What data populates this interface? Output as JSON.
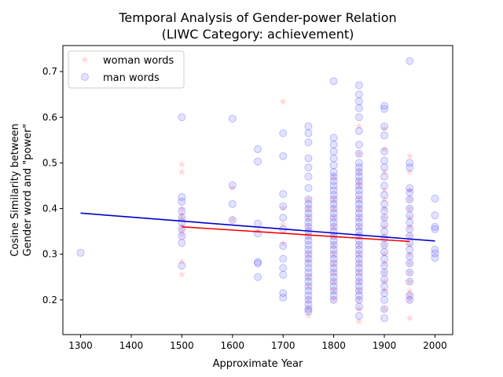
{
  "chart_data": {
    "type": "scatter",
    "title_line1": "Temporal Analysis of Gender-power Relation",
    "title_line2": "(LIWC Category: achievement)",
    "xlabel": "Approximate Year",
    "ylabel_line1": "Cosine Similarity between",
    "ylabel_line2": "Gender word and \"power\"",
    "xlim": [
      1265,
      2035
    ],
    "ylim": [
      0.124,
      0.757
    ],
    "xticks": [
      1300,
      1400,
      1500,
      1600,
      1700,
      1800,
      1900,
      2000
    ],
    "yticks": [
      0.2,
      0.3,
      0.4,
      0.5,
      0.6,
      0.7
    ],
    "legend_position": "top-left",
    "series": [
      {
        "name": "woman words",
        "color": "#ff8080",
        "marker": "star",
        "points": [
          [
            1500,
            0.497
          ],
          [
            1500,
            0.48
          ],
          [
            1500,
            0.399
          ],
          [
            1500,
            0.386
          ],
          [
            1500,
            0.378
          ],
          [
            1500,
            0.362
          ],
          [
            1500,
            0.354
          ],
          [
            1500,
            0.343
          ],
          [
            1500,
            0.284
          ],
          [
            1500,
            0.256
          ],
          [
            1600,
            0.445
          ],
          [
            1600,
            0.376
          ],
          [
            1650,
            0.352
          ],
          [
            1700,
            0.634
          ],
          [
            1700,
            0.401
          ],
          [
            1700,
            0.365
          ],
          [
            1700,
            0.324
          ],
          [
            1750,
            0.42
          ],
          [
            1750,
            0.4
          ],
          [
            1750,
            0.38
          ],
          [
            1750,
            0.36
          ],
          [
            1750,
            0.34
          ],
          [
            1750,
            0.3
          ],
          [
            1750,
            0.285
          ],
          [
            1750,
            0.25
          ],
          [
            1750,
            0.23
          ],
          [
            1750,
            0.2
          ],
          [
            1750,
            0.18
          ],
          [
            1750,
            0.165
          ],
          [
            1800,
            0.47
          ],
          [
            1800,
            0.42
          ],
          [
            1800,
            0.4
          ],
          [
            1800,
            0.38
          ],
          [
            1800,
            0.36
          ],
          [
            1800,
            0.34
          ],
          [
            1800,
            0.32
          ],
          [
            1800,
            0.3
          ],
          [
            1800,
            0.28
          ],
          [
            1800,
            0.26
          ],
          [
            1800,
            0.24
          ],
          [
            1800,
            0.22
          ],
          [
            1800,
            0.2
          ],
          [
            1850,
            0.58
          ],
          [
            1850,
            0.52
          ],
          [
            1850,
            0.48
          ],
          [
            1850,
            0.46
          ],
          [
            1850,
            0.45
          ],
          [
            1850,
            0.42
          ],
          [
            1850,
            0.4
          ],
          [
            1850,
            0.38
          ],
          [
            1850,
            0.36
          ],
          [
            1850,
            0.34
          ],
          [
            1850,
            0.32
          ],
          [
            1850,
            0.3
          ],
          [
            1850,
            0.28
          ],
          [
            1850,
            0.26
          ],
          [
            1850,
            0.24
          ],
          [
            1850,
            0.22
          ],
          [
            1850,
            0.2
          ],
          [
            1850,
            0.18
          ],
          [
            1850,
            0.153
          ],
          [
            1900,
            0.575
          ],
          [
            1900,
            0.53
          ],
          [
            1900,
            0.48
          ],
          [
            1900,
            0.44
          ],
          [
            1900,
            0.42
          ],
          [
            1900,
            0.4
          ],
          [
            1900,
            0.38
          ],
          [
            1900,
            0.36
          ],
          [
            1900,
            0.34
          ],
          [
            1900,
            0.32
          ],
          [
            1900,
            0.3
          ],
          [
            1900,
            0.28
          ],
          [
            1900,
            0.26
          ],
          [
            1900,
            0.24
          ],
          [
            1900,
            0.22
          ],
          [
            1900,
            0.18
          ],
          [
            1950,
            0.515
          ],
          [
            1950,
            0.48
          ],
          [
            1950,
            0.44
          ],
          [
            1950,
            0.42
          ],
          [
            1950,
            0.4
          ],
          [
            1950,
            0.38
          ],
          [
            1950,
            0.36
          ],
          [
            1950,
            0.34
          ],
          [
            1950,
            0.32
          ],
          [
            1950,
            0.3
          ],
          [
            1950,
            0.28
          ],
          [
            1950,
            0.26
          ],
          [
            1950,
            0.24
          ],
          [
            1950,
            0.22
          ],
          [
            1950,
            0.21
          ],
          [
            1950,
            0.2
          ],
          [
            1950,
            0.16
          ]
        ]
      },
      {
        "name": "man words",
        "color": "#4040ff",
        "marker": "circle",
        "points": [
          [
            1300,
            0.303
          ],
          [
            1500,
            0.6
          ],
          [
            1500,
            0.425
          ],
          [
            1500,
            0.415
          ],
          [
            1500,
            0.395
          ],
          [
            1500,
            0.38
          ],
          [
            1500,
            0.37
          ],
          [
            1500,
            0.355
          ],
          [
            1500,
            0.34
          ],
          [
            1500,
            0.325
          ],
          [
            1500,
            0.275
          ],
          [
            1600,
            0.597
          ],
          [
            1600,
            0.451
          ],
          [
            1600,
            0.41
          ],
          [
            1600,
            0.375
          ],
          [
            1650,
            0.53
          ],
          [
            1650,
            0.503
          ],
          [
            1650,
            0.367
          ],
          [
            1650,
            0.345
          ],
          [
            1650,
            0.283
          ],
          [
            1650,
            0.28
          ],
          [
            1650,
            0.25
          ],
          [
            1700,
            0.565
          ],
          [
            1700,
            0.515
          ],
          [
            1700,
            0.432
          ],
          [
            1700,
            0.405
          ],
          [
            1700,
            0.38
          ],
          [
            1700,
            0.355
          ],
          [
            1700,
            0.318
          ],
          [
            1700,
            0.29
          ],
          [
            1700,
            0.27
          ],
          [
            1700,
            0.255
          ],
          [
            1700,
            0.215
          ],
          [
            1700,
            0.205
          ],
          [
            1750,
            0.58
          ],
          [
            1750,
            0.565
          ],
          [
            1750,
            0.545
          ],
          [
            1750,
            0.51
          ],
          [
            1750,
            0.49
          ],
          [
            1750,
            0.47
          ],
          [
            1750,
            0.445
          ],
          [
            1750,
            0.42
          ],
          [
            1750,
            0.41
          ],
          [
            1750,
            0.4
          ],
          [
            1750,
            0.39
          ],
          [
            1750,
            0.38
          ],
          [
            1750,
            0.37
          ],
          [
            1750,
            0.36
          ],
          [
            1750,
            0.35
          ],
          [
            1750,
            0.34
          ],
          [
            1750,
            0.33
          ],
          [
            1750,
            0.32
          ],
          [
            1750,
            0.31
          ],
          [
            1750,
            0.3
          ],
          [
            1750,
            0.29
          ],
          [
            1750,
            0.28
          ],
          [
            1750,
            0.27
          ],
          [
            1750,
            0.26
          ],
          [
            1750,
            0.25
          ],
          [
            1750,
            0.24
          ],
          [
            1750,
            0.23
          ],
          [
            1750,
            0.22
          ],
          [
            1750,
            0.21
          ],
          [
            1750,
            0.2
          ],
          [
            1750,
            0.19
          ],
          [
            1750,
            0.18
          ],
          [
            1750,
            0.175
          ],
          [
            1800,
            0.679
          ],
          [
            1800,
            0.555
          ],
          [
            1800,
            0.54
          ],
          [
            1800,
            0.525
          ],
          [
            1800,
            0.51
          ],
          [
            1800,
            0.495
          ],
          [
            1800,
            0.48
          ],
          [
            1800,
            0.47
          ],
          [
            1800,
            0.46
          ],
          [
            1800,
            0.45
          ],
          [
            1800,
            0.44
          ],
          [
            1800,
            0.43
          ],
          [
            1800,
            0.42
          ],
          [
            1800,
            0.41
          ],
          [
            1800,
            0.4
          ],
          [
            1800,
            0.39
          ],
          [
            1800,
            0.38
          ],
          [
            1800,
            0.37
          ],
          [
            1800,
            0.36
          ],
          [
            1800,
            0.35
          ],
          [
            1800,
            0.34
          ],
          [
            1800,
            0.33
          ],
          [
            1800,
            0.32
          ],
          [
            1800,
            0.31
          ],
          [
            1800,
            0.3
          ],
          [
            1800,
            0.29
          ],
          [
            1800,
            0.28
          ],
          [
            1800,
            0.27
          ],
          [
            1800,
            0.26
          ],
          [
            1800,
            0.25
          ],
          [
            1800,
            0.24
          ],
          [
            1800,
            0.23
          ],
          [
            1800,
            0.22
          ],
          [
            1800,
            0.21
          ],
          [
            1800,
            0.2
          ],
          [
            1850,
            0.67
          ],
          [
            1850,
            0.65
          ],
          [
            1850,
            0.635
          ],
          [
            1850,
            0.62
          ],
          [
            1850,
            0.6
          ],
          [
            1850,
            0.57
          ],
          [
            1850,
            0.54
          ],
          [
            1850,
            0.52
          ],
          [
            1850,
            0.5
          ],
          [
            1850,
            0.49
          ],
          [
            1850,
            0.48
          ],
          [
            1850,
            0.47
          ],
          [
            1850,
            0.46
          ],
          [
            1850,
            0.45
          ],
          [
            1850,
            0.44
          ],
          [
            1850,
            0.43
          ],
          [
            1850,
            0.42
          ],
          [
            1850,
            0.41
          ],
          [
            1850,
            0.4
          ],
          [
            1850,
            0.39
          ],
          [
            1850,
            0.38
          ],
          [
            1850,
            0.37
          ],
          [
            1850,
            0.36
          ],
          [
            1850,
            0.35
          ],
          [
            1850,
            0.34
          ],
          [
            1850,
            0.33
          ],
          [
            1850,
            0.32
          ],
          [
            1850,
            0.31
          ],
          [
            1850,
            0.3
          ],
          [
            1850,
            0.29
          ],
          [
            1850,
            0.28
          ],
          [
            1850,
            0.27
          ],
          [
            1850,
            0.26
          ],
          [
            1850,
            0.25
          ],
          [
            1850,
            0.24
          ],
          [
            1850,
            0.23
          ],
          [
            1850,
            0.22
          ],
          [
            1850,
            0.21
          ],
          [
            1850,
            0.2
          ],
          [
            1850,
            0.185
          ],
          [
            1850,
            0.165
          ],
          [
            1900,
            0.625
          ],
          [
            1900,
            0.618
          ],
          [
            1900,
            0.58
          ],
          [
            1900,
            0.56
          ],
          [
            1900,
            0.525
          ],
          [
            1900,
            0.505
          ],
          [
            1900,
            0.49
          ],
          [
            1900,
            0.47
          ],
          [
            1900,
            0.45
          ],
          [
            1900,
            0.43
          ],
          [
            1900,
            0.41
          ],
          [
            1900,
            0.395
          ],
          [
            1900,
            0.38
          ],
          [
            1900,
            0.365
          ],
          [
            1900,
            0.35
          ],
          [
            1900,
            0.335
          ],
          [
            1900,
            0.32
          ],
          [
            1900,
            0.305
          ],
          [
            1900,
            0.29
          ],
          [
            1900,
            0.275
          ],
          [
            1900,
            0.26
          ],
          [
            1900,
            0.245
          ],
          [
            1900,
            0.23
          ],
          [
            1900,
            0.215
          ],
          [
            1900,
            0.2
          ],
          [
            1900,
            0.18
          ],
          [
            1900,
            0.16
          ],
          [
            1950,
            0.723
          ],
          [
            1950,
            0.5
          ],
          [
            1950,
            0.49
          ],
          [
            1950,
            0.445
          ],
          [
            1950,
            0.435
          ],
          [
            1950,
            0.42
          ],
          [
            1950,
            0.4
          ],
          [
            1950,
            0.385
          ],
          [
            1950,
            0.37
          ],
          [
            1950,
            0.355
          ],
          [
            1950,
            0.34
          ],
          [
            1950,
            0.325
          ],
          [
            1950,
            0.31
          ],
          [
            1950,
            0.295
          ],
          [
            1950,
            0.28
          ],
          [
            1950,
            0.26
          ],
          [
            1950,
            0.24
          ],
          [
            1950,
            0.21
          ],
          [
            1950,
            0.2
          ],
          [
            2000,
            0.422
          ],
          [
            2000,
            0.385
          ],
          [
            2000,
            0.36
          ],
          [
            2000,
            0.355
          ],
          [
            2000,
            0.31
          ],
          [
            2000,
            0.302
          ],
          [
            2000,
            0.292
          ]
        ]
      }
    ],
    "trend_lines": [
      {
        "series": "woman words",
        "color": "#ff0000",
        "x": [
          1500,
          1950
        ],
        "y": [
          0.36,
          0.328
        ]
      },
      {
        "series": "man words",
        "color": "#0000cc",
        "x": [
          1300,
          2000
        ],
        "y": [
          0.39,
          0.329
        ]
      }
    ]
  }
}
